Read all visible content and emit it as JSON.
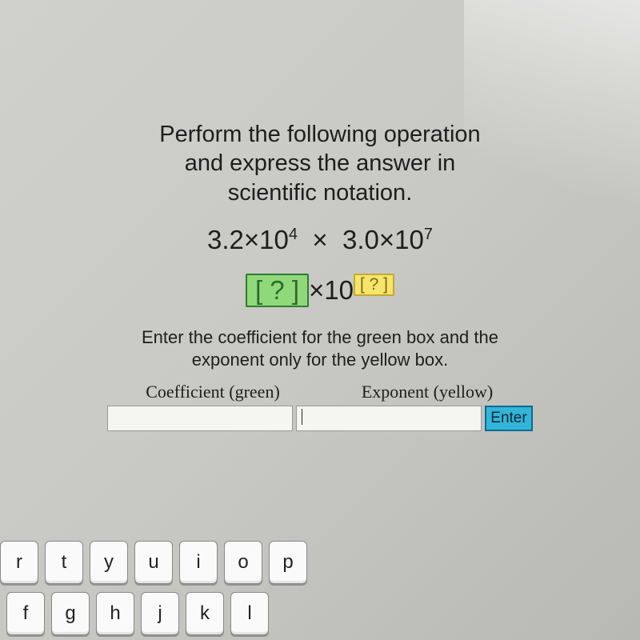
{
  "colors": {
    "green_box_bg": "#8fd97a",
    "green_box_border": "#2e7d2e",
    "yellow_box_bg": "#f5e56b",
    "yellow_box_border": "#c7a92e",
    "enter_bg": "#33b5d9",
    "enter_border": "#0d6b8f",
    "input_bg": "#f5f5f2"
  },
  "instruction": {
    "line1": "Perform the following operation",
    "line2": "and express the answer in",
    "line3": "scientific notation."
  },
  "expression": {
    "coef1": "3.2",
    "base1": "10",
    "exp1": "4",
    "times": "×",
    "coef2": "3.0",
    "base2": "10",
    "exp2": "7"
  },
  "answer_template": {
    "coef_placeholder": "[ ? ]",
    "times": "×",
    "base": "10",
    "exp_placeholder": "[ ? ]"
  },
  "hint": {
    "line1": "Enter the coefficient for the green box and the",
    "line2": "exponent only for the yellow box."
  },
  "labels": {
    "coefficient": "Coefficient (green)",
    "exponent": "Exponent (yellow)"
  },
  "inputs": {
    "coefficient_value": "",
    "exponent_value": ""
  },
  "buttons": {
    "enter": "Enter"
  },
  "keyboard": {
    "row1": [
      "r",
      "t",
      "y",
      "u",
      "i",
      "o",
      "p"
    ],
    "row2": [
      "f",
      "g",
      "h",
      "j",
      "k",
      "l"
    ]
  }
}
